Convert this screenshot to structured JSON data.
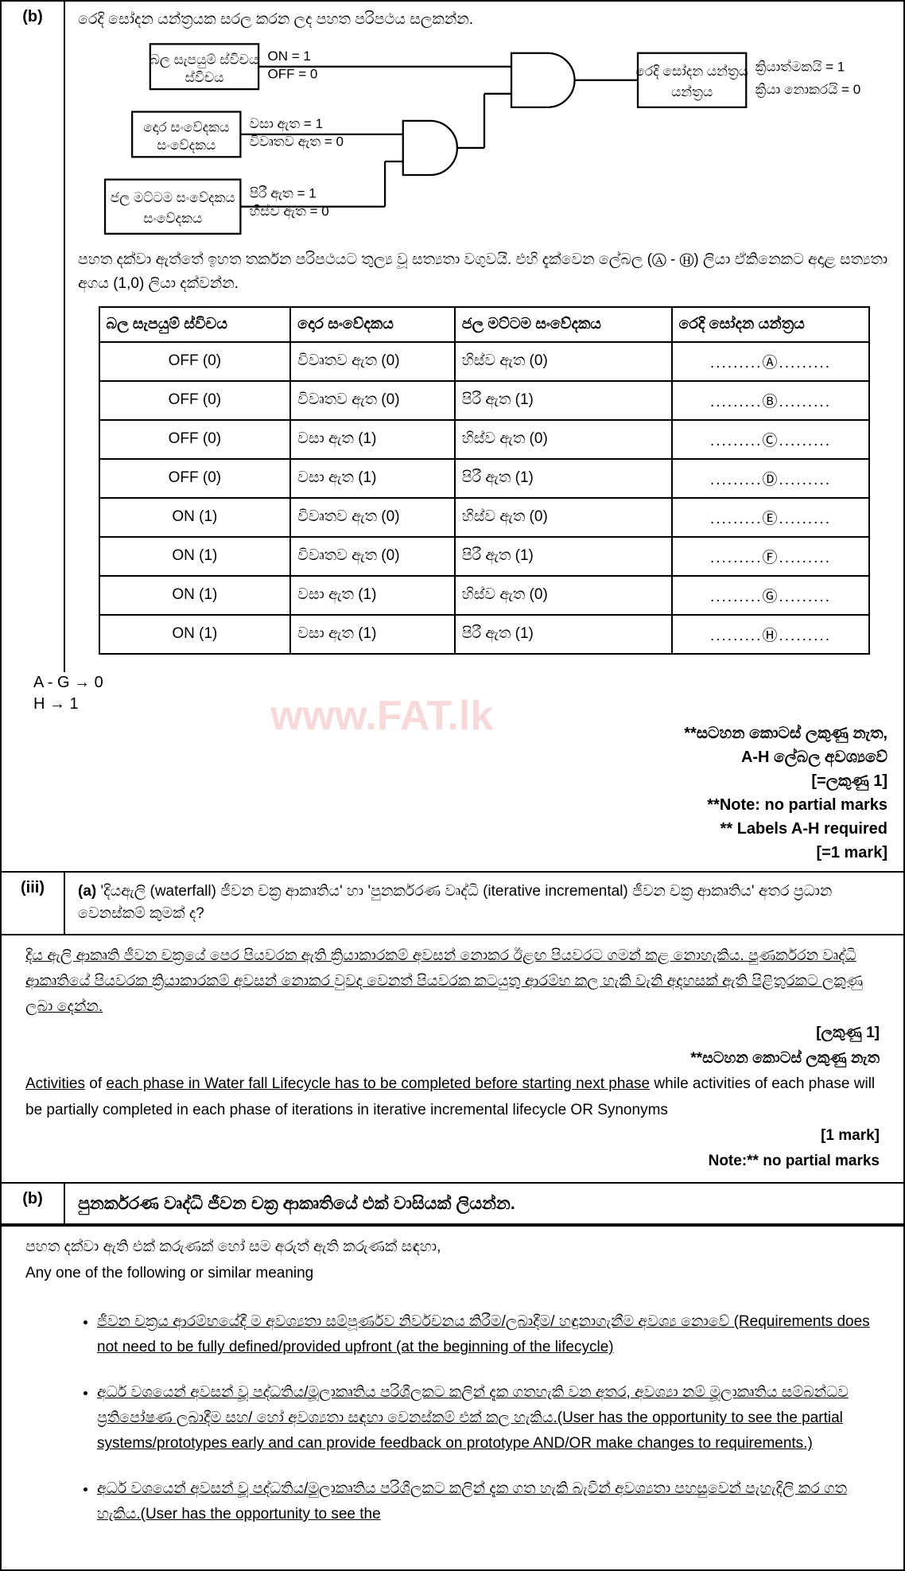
{
  "section_b": {
    "label": "(b)",
    "instruction": "රෙදි සෝදන යන්ත්‍රයක සරල කරන ලද පහත පරිපථය සලකන්න.",
    "circuit": {
      "box1": {
        "title": "බල සැපයුම් ස්විචය",
        "line1": "ON = 1",
        "line2": "OFF = 0"
      },
      "box2": {
        "title": "දොර සංවේදකය",
        "line1": "වසා ඇත = 1",
        "line2": "විවෘතව ඇත = 0"
      },
      "box3": {
        "title": "ජල මට්ටම සංවේදකය",
        "line1": "පිරී ඇත = 1",
        "line2": "හිස්ව ඇත = 0"
      },
      "output": {
        "title": "රෙදි සෝදන යන්ත්‍රය",
        "line1": "ක්‍රියාත්මකයි = 1",
        "line2": "ක්‍රියා නොකරයි = 0"
      }
    },
    "table_instruction": "පහත දක්වා ඇත්තේ ඉහත තර්කන පරිපථයට තුල්‍ය වූ සත්‍යතා වගුවයි. එහි දැක්වෙන ලේබල (Ⓐ - Ⓗ) ලියා ඒකිනෙකට අදාළ සත්‍යතා අගය (1,0) ලියා දක්වන්න.",
    "table": {
      "headers": [
        "බල සැපයුම් ස්විචය",
        "දොර සංවේදකය",
        "ජල මට්ටම සංවේදකය",
        "රෙදි සෝදන යන්ත්‍රය"
      ],
      "rows": [
        [
          "OFF (0)",
          "විවෘතව ඇත (0)",
          "හිස්ව ඇත (0)",
          ".........Ⓐ........."
        ],
        [
          "OFF (0)",
          "විවෘතව ඇත (0)",
          "පිරී ඇත   (1)",
          ".........Ⓑ........."
        ],
        [
          "OFF (0)",
          "වසා   ඇත   (1)",
          "හිස්ව ඇත (0)",
          ".........Ⓒ........."
        ],
        [
          "OFF (0)",
          "වසා   ඇත   (1)",
          "පිරී ඇත   (1)",
          ".........Ⓓ........."
        ],
        [
          "ON (1)",
          "විවෘතව ඇත (0)",
          "හිස්ව ඇත (0)",
          ".........Ⓔ........."
        ],
        [
          "ON (1)",
          "විවෘතව ඇත (0)",
          "පිරී ඇත   (1)",
          ".........Ⓕ........."
        ],
        [
          "ON (1)",
          "වසා   ඇත   (1)",
          "හිස්ව ඇත (0)",
          ".........Ⓖ........."
        ],
        [
          "ON (1)",
          "වසා   ඇත   (1)",
          "පිරී ඇත   (1)",
          ".........Ⓗ........."
        ]
      ]
    },
    "answers": {
      "line1": "A - G → 0",
      "line2": "H → 1"
    },
    "marks": {
      "line1": "**සටහන කොටස් ලකුණු නැත,",
      "line2": "A-H ලේබල අවශ්‍යවේ",
      "line3": "[=ලකුණු 1]",
      "line4": "**Note: no partial marks",
      "line5": "** Labels A-H required",
      "line6": "[=1 mark]"
    }
  },
  "section_iii": {
    "label": "(iii)",
    "sublabel": "(a)",
    "question": "'දියඇලි (waterfall) ජීවන චක්‍ර ආකෘතිය' හා 'පුනර්කරණ වෘද්ධි (iterative incremental) ජීවන චක්‍ර ආකෘතිය' අතර ප්‍රධාන වෙනස්කම් කුමක් ද?",
    "answer_si": "දිය ඇලි ආකෘති ජීවන චක්‍රයේ පෙර පියවරක ඇති ක්‍රියාකාරකම් අවසන් නොකර ඊළඟ පියවරට ගමන් කළ නොහැකිය. පුණර්කරන වෘද්ධි ආකෘතියේ පියවරක ක්‍රියාකාරකම් අවසන් නොකර වුවද වෙනත් පියවරක කටයුතු ආරම්භ කල හැකි  වැනි අදහසක් ඇති පිළිතුරකට ලකුණු ලබා දෙන්න.",
    "marks_si": "[ලකුණු 1]",
    "note_si": "**සටහන කොටස් ලකුණු නැත",
    "answer_en": "Activities of each phase in Water fall Lifecycle has to be completed before starting next phase while activities of each phase will be partially completed in each phase of iterations in iterative incremental lifecycle OR Synonyms",
    "marks_en": "[1 mark]",
    "note_en": "Note:** no partial marks"
  },
  "section_b2": {
    "label": "(b)",
    "question": "පුනර්කරණ වෘද්ධි ජීවන චක්‍ර ආකෘතියේ එක් වාසියක් ලියන්න.",
    "intro_si": "පහත දක්වා ඇති එක් කරුණක් හෝ සම අරුත් ඇති කරුණක් සඳහා,",
    "intro_en": "Any one of the following or similar meaning",
    "bullets": [
      "ජීවන චක්‍රය ආරම්භයේදී ම අවශ්‍යතා සම්පූර්ණව නිර්වචනය කිරීම/ලබාදීම/ හඳුනාගැනීම අවශ්‍ය නොවේ (Requirements does not need to be fully defined/provided upfront (at the beginning of the lifecycle)",
      "අර්ධ වශයෙන් අවසන් වූ පද්ධතිය/මූලාකෘතිය පරිශීලකට කලින් දැක ගතහැකි වන අතර, අවශ්‍යා නම් මූලාකෘතිය සම්බන්ධව ප්‍රතිපෝෂණ ලබාදීම සහ/ හෝ අවශ්‍යතා සඳහා වෙනස්කම් එක් කල හැකිය.(User has the opportunity to see the partial systems/prototypes early and can provide feedback on prototype AND/OR make changes to requirements.)",
      "අර්ධ වශයෙන් අවසන් වූ පද්ධතිය/මුලාකෘතිය පරිශීලකට කලින් දැක ගත හැකි බැවින් අවශ්‍යතා පහසුවෙන් පැහැදිලි කර ගත හැකිය.(User has the opportunity to see the"
    ]
  },
  "watermark": "www.FAT.lk"
}
